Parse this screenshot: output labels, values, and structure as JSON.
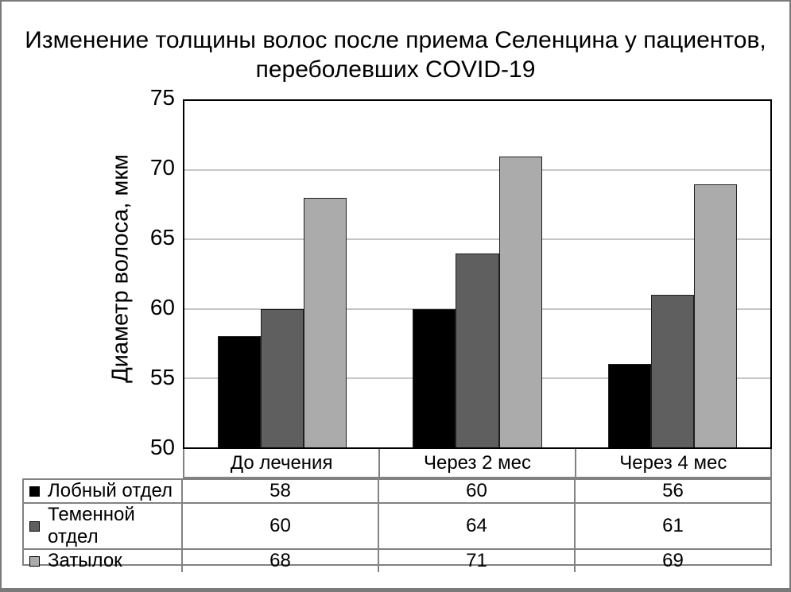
{
  "chart_data": {
    "type": "bar",
    "title": "Изменение толщины волос после приема Селенцина у пациентов, переболевших COVID-19",
    "title_lines": [
      "Изменение толщины волос после приема Селенцина у пациентов,",
      "переболевших COVID-19"
    ],
    "ylabel": "Диаметр волоса, мкм",
    "ylim": [
      50,
      75
    ],
    "yticks": [
      75,
      70,
      65,
      60,
      55,
      50
    ],
    "grid": "horizontal",
    "legend_position": "table-left",
    "categories": [
      "До лечения",
      "Через 2 мес",
      "Через 4 мес"
    ],
    "series": [
      {
        "name": "Лобный отдел",
        "color": "#000000",
        "values": [
          58,
          60,
          56
        ]
      },
      {
        "name": "Теменной отдел",
        "color": "#5f5f5f",
        "values": [
          60,
          64,
          61
        ]
      },
      {
        "name": "Затылок",
        "color": "#ababab",
        "values": [
          68,
          71,
          69
        ]
      }
    ]
  }
}
